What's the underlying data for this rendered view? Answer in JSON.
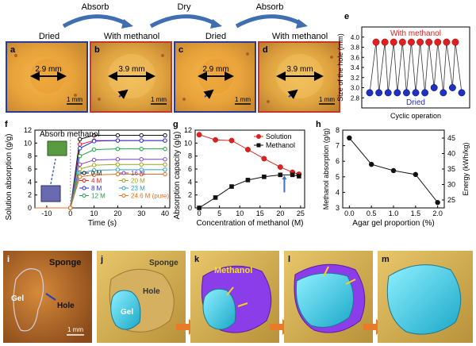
{
  "top_row": {
    "arrows": [
      "Absorb",
      "Dry",
      "Absorb"
    ],
    "frames": [
      {
        "letter": "a",
        "state": "Dried",
        "measure": "2.9 mm",
        "scale": "1 mm",
        "border": "#2a3a9a"
      },
      {
        "letter": "b",
        "state": "With methanol",
        "measure": "3.9 mm",
        "scale": "1 mm",
        "border": "#c0392b"
      },
      {
        "letter": "c",
        "state": "Dried",
        "measure": "2.9 mm",
        "scale": "1 mm",
        "border": "#2a3a9a"
      },
      {
        "letter": "d",
        "state": "With methanol",
        "measure": "3.9 mm",
        "scale": "1 mm",
        "border": "#c0392b"
      }
    ]
  },
  "panel_labels": {
    "e": "e",
    "f": "f",
    "g": "g",
    "h": "h",
    "i": "i",
    "j": "j",
    "k": "k",
    "l": "l",
    "m": "m"
  },
  "bottom_row": {
    "i": {
      "sponge": "Sponge",
      "gel": "Gel",
      "hole": "Hole",
      "scale": "1 mm"
    },
    "j": {
      "sponge": "Sponge",
      "hole": "Hole",
      "gel": "Gel"
    },
    "k": {
      "methanol": "Methanol"
    }
  },
  "chart_data": [
    {
      "id": "e",
      "type": "line",
      "title": "",
      "xlabel": "Cyclic operation",
      "ylabel": "Size of the hole (mm)",
      "ylim": [
        2.6,
        4.2
      ],
      "yticks": [
        "2.8",
        "3.0",
        "3.2",
        "3.4",
        "3.6",
        "3.8",
        "4.0"
      ],
      "annotations": {
        "top": "With methanol",
        "bottom": "Dried"
      },
      "series": [
        {
          "name": "With methanol",
          "color": "#e02020",
          "values": [
            3.9,
            3.9,
            3.9,
            3.9,
            3.9,
            3.9,
            3.9,
            3.9,
            3.9,
            3.9
          ]
        },
        {
          "name": "Dried",
          "color": "#2030c0",
          "values": [
            2.9,
            2.9,
            2.9,
            2.9,
            2.9,
            2.9,
            2.9,
            3.0,
            2.9,
            3.0,
            2.9
          ]
        }
      ]
    },
    {
      "id": "f",
      "type": "line",
      "title": "",
      "inset_label": "Absorb methanol",
      "xlabel": "Time (s)",
      "ylabel": "Solution absorption (g/g)",
      "xlim": [
        -15,
        42
      ],
      "ylim": [
        0,
        12
      ],
      "xticks": [
        "-10",
        "0",
        "10",
        "20",
        "30",
        "40"
      ],
      "yticks": [
        "0",
        "2",
        "4",
        "6",
        "8",
        "10",
        "12"
      ],
      "x": [
        -15,
        0,
        4,
        10,
        20,
        30,
        40
      ],
      "series": [
        {
          "name": "0 M",
          "color": "#111111",
          "values": [
            0,
            0,
            10.6,
            11.2,
            11.2,
            11.2,
            11.2
          ]
        },
        {
          "name": "4 M",
          "color": "#e02020",
          "values": [
            0,
            0,
            9.8,
            10.4,
            10.4,
            10.4,
            10.4
          ]
        },
        {
          "name": "8 M",
          "color": "#2030e0",
          "values": [
            0,
            0,
            9.2,
            10.3,
            10.4,
            10.4,
            10.4
          ]
        },
        {
          "name": "12 M",
          "color": "#20a040",
          "values": [
            0,
            0,
            8.0,
            9.0,
            9.1,
            9.1,
            9.1
          ]
        },
        {
          "name": "16 M",
          "color": "#8040c0",
          "values": [
            0,
            0,
            6.7,
            7.4,
            7.5,
            7.5,
            7.5
          ]
        },
        {
          "name": "20 M",
          "color": "#a0a020",
          "values": [
            0,
            0,
            6.0,
            6.6,
            6.7,
            6.7,
            6.7
          ]
        },
        {
          "name": "23 M",
          "color": "#30a0c0",
          "values": [
            0,
            0,
            5.4,
            5.8,
            5.9,
            5.9,
            5.9
          ]
        },
        {
          "name": "24.6 M (pure)",
          "color": "#e07020",
          "values": [
            0,
            0,
            4.8,
            5.1,
            5.2,
            5.2,
            5.2
          ]
        }
      ],
      "legend_columns": [
        [
          "0 M",
          "4 M",
          "8 M",
          "12 M"
        ],
        [
          "16 M",
          "20 M",
          "23 M",
          "24.6 M (pure)"
        ]
      ]
    },
    {
      "id": "g",
      "type": "line",
      "title": "",
      "xlabel": "Concentration of methanol (M)",
      "ylabel": "Absorption capacity (g/g)",
      "xlim": [
        -1,
        26
      ],
      "ylim": [
        0,
        12
      ],
      "xticks": [
        "0",
        "5",
        "10",
        "15",
        "20",
        "25"
      ],
      "yticks": [
        "0",
        "2",
        "4",
        "6",
        "8",
        "10",
        "12"
      ],
      "series": [
        {
          "name": "Solution",
          "color": "#e02020",
          "marker": "circle",
          "x": [
            0,
            4,
            8,
            12,
            16,
            20,
            23,
            24.6
          ],
          "values": [
            11.3,
            10.5,
            10.4,
            9.0,
            7.6,
            6.3,
            5.5,
            5.2
          ]
        },
        {
          "name": "Methanol",
          "color": "#111111",
          "marker": "square",
          "x": [
            0,
            4,
            8,
            12,
            16,
            20,
            23,
            24.6
          ],
          "values": [
            0,
            1.6,
            3.3,
            4.3,
            4.8,
            5.1,
            5.1,
            4.9
          ]
        }
      ]
    },
    {
      "id": "h",
      "type": "line",
      "title": "",
      "xlabel": "Agar gel proportion (%)",
      "ylabel": "Methanol absorption (g/g)",
      "ylabel_right": "Energy (kWh/kg)",
      "xlim": [
        -0.15,
        2.15
      ],
      "ylim": [
        3,
        8
      ],
      "xticks": [
        "0.0",
        "0.5",
        "1.0",
        "1.5",
        "2.0"
      ],
      "yticks": [
        "3",
        "4",
        "5",
        "6",
        "7",
        "8"
      ],
      "yticks_right": [
        "25",
        "30",
        "35",
        "40",
        "45"
      ],
      "series": [
        {
          "name": "",
          "color": "#111111",
          "x": [
            0,
            0.5,
            1.0,
            1.5,
            2.0
          ],
          "values": [
            7.5,
            5.8,
            5.4,
            5.15,
            3.35
          ]
        }
      ]
    }
  ]
}
